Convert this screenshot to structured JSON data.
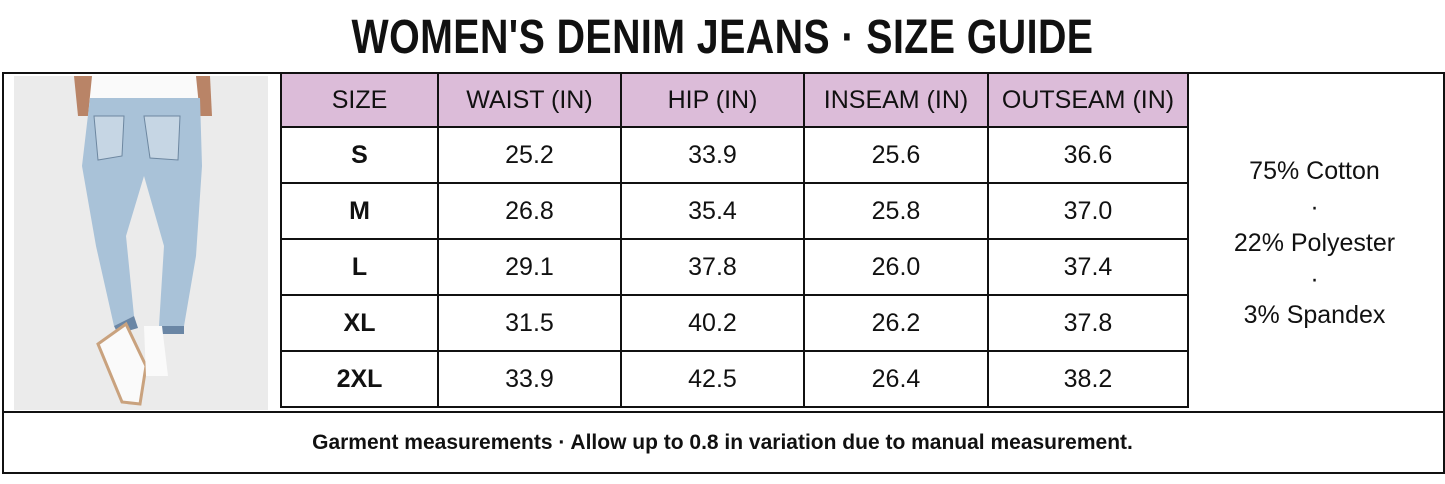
{
  "title": "WOMEN'S DENIM JEANS · SIZE GUIDE",
  "table": {
    "header": [
      "SIZE",
      "WAIST (IN)",
      "HIP (IN)",
      "INSEAM (IN)",
      "OUTSEAM (IN)"
    ],
    "rows": [
      [
        "S",
        "25.2",
        "33.9",
        "25.6",
        "36.6"
      ],
      [
        "M",
        "26.8",
        "35.4",
        "25.8",
        "37.0"
      ],
      [
        "L",
        "29.1",
        "37.8",
        "26.0",
        "37.4"
      ],
      [
        "XL",
        "31.5",
        "40.2",
        "26.2",
        "37.8"
      ],
      [
        "2XL",
        "33.9",
        "42.5",
        "26.4",
        "38.2"
      ]
    ]
  },
  "composition": [
    "75% Cotton",
    "·",
    "22% Polyester",
    "·",
    "3% Spandex"
  ],
  "footer": "Garment measurements · Allow up to 0.8 in variation due to manual measurement."
}
